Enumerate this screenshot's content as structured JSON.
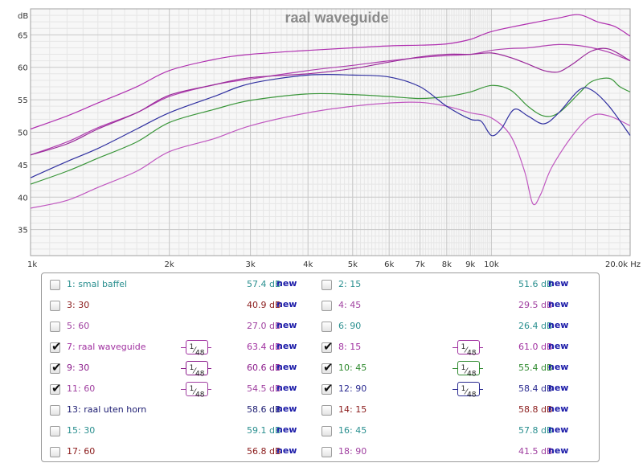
{
  "chart_data": {
    "type": "line",
    "title": "raal waveguide",
    "xscale": "log",
    "xlim": [
      1000,
      20000
    ],
    "ylim": [
      31,
      69
    ],
    "x_ticks": [
      {
        "v": 1000,
        "label": "1k"
      },
      {
        "v": 2000,
        "label": "2k"
      },
      {
        "v": 3000,
        "label": "3k"
      },
      {
        "v": 4000,
        "label": "4k"
      },
      {
        "v": 5000,
        "label": "5k"
      },
      {
        "v": 6000,
        "label": "6k"
      },
      {
        "v": 7000,
        "label": "7k"
      },
      {
        "v": 8000,
        "label": "8k"
      },
      {
        "v": 9000,
        "label": "9k"
      },
      {
        "v": 10000,
        "label": "10k"
      },
      {
        "v": 20000,
        "label": "20.0k Hz"
      }
    ],
    "y_ticks": [
      35,
      40,
      45,
      50,
      55,
      60,
      65
    ],
    "y_unit": "dB",
    "grid": true,
    "series": [
      {
        "name": "7: raal waveguide",
        "color": "#b030b0",
        "points": [
          [
            1000,
            50.5
          ],
          [
            1200,
            52.5
          ],
          [
            1400,
            54.5
          ],
          [
            1700,
            57
          ],
          [
            2000,
            59.5
          ],
          [
            2500,
            61.2
          ],
          [
            3000,
            62
          ],
          [
            4000,
            62.6
          ],
          [
            5000,
            63
          ],
          [
            6000,
            63.3
          ],
          [
            7000,
            63.4
          ],
          [
            8000,
            63.6
          ],
          [
            9000,
            64.3
          ],
          [
            10000,
            65.5
          ],
          [
            12000,
            66.7
          ],
          [
            14000,
            67.6
          ],
          [
            15500,
            68.1
          ],
          [
            17000,
            67
          ],
          [
            18500,
            66.3
          ],
          [
            20000,
            64.8
          ]
        ]
      },
      {
        "name": "8: 15",
        "color": "#b040b0",
        "points": [
          [
            1000,
            46.5
          ],
          [
            1200,
            48.5
          ],
          [
            1400,
            50.7
          ],
          [
            1700,
            53
          ],
          [
            2000,
            55.5
          ],
          [
            2500,
            57.3
          ],
          [
            3000,
            58.2
          ],
          [
            4000,
            59.5
          ],
          [
            5000,
            60.3
          ],
          [
            6000,
            61
          ],
          [
            7000,
            61.5
          ],
          [
            8000,
            61.8
          ],
          [
            9000,
            62
          ],
          [
            10000,
            62.6
          ],
          [
            11000,
            62.9
          ],
          [
            12000,
            63
          ],
          [
            14000,
            63.5
          ],
          [
            16000,
            63.2
          ],
          [
            18000,
            62.3
          ],
          [
            20000,
            61
          ]
        ]
      },
      {
        "name": "9: 30",
        "color": "#9a2a9a",
        "points": [
          [
            1000,
            46.5
          ],
          [
            1200,
            48.2
          ],
          [
            1400,
            50.5
          ],
          [
            1700,
            53
          ],
          [
            2000,
            55.7
          ],
          [
            2500,
            57.3
          ],
          [
            3000,
            58.4
          ],
          [
            4000,
            59
          ],
          [
            5000,
            59.8
          ],
          [
            6000,
            60.8
          ],
          [
            7000,
            61.6
          ],
          [
            8000,
            62
          ],
          [
            9000,
            62
          ],
          [
            10000,
            62.2
          ],
          [
            11000,
            61.5
          ],
          [
            12000,
            60.5
          ],
          [
            13000,
            59.5
          ],
          [
            14000,
            59.3
          ],
          [
            15000,
            60.5
          ],
          [
            16500,
            62.5
          ],
          [
            18000,
            62.8
          ],
          [
            20000,
            61
          ]
        ]
      },
      {
        "name": "10: 45",
        "color": "#3a963a",
        "points": [
          [
            1000,
            42
          ],
          [
            1200,
            44
          ],
          [
            1400,
            46
          ],
          [
            1700,
            48.5
          ],
          [
            2000,
            51.5
          ],
          [
            2500,
            53.5
          ],
          [
            3000,
            54.9
          ],
          [
            4000,
            55.9
          ],
          [
            5000,
            55.8
          ],
          [
            6000,
            55.5
          ],
          [
            7000,
            55.2
          ],
          [
            8000,
            55.5
          ],
          [
            9000,
            56.2
          ],
          [
            10000,
            57.2
          ],
          [
            11000,
            56.5
          ],
          [
            12000,
            54
          ],
          [
            13000,
            52.5
          ],
          [
            14000,
            53
          ],
          [
            15500,
            56
          ],
          [
            16500,
            57.8
          ],
          [
            18000,
            58.3
          ],
          [
            19000,
            57
          ],
          [
            20000,
            56.2
          ]
        ]
      },
      {
        "name": "11: 60",
        "color": "#c058c0",
        "points": [
          [
            1000,
            38.3
          ],
          [
            1200,
            39.5
          ],
          [
            1400,
            41.5
          ],
          [
            1700,
            44
          ],
          [
            2000,
            47
          ],
          [
            2500,
            49
          ],
          [
            3000,
            51
          ],
          [
            4000,
            53
          ],
          [
            5000,
            54
          ],
          [
            6000,
            54.5
          ],
          [
            7000,
            54.6
          ],
          [
            8000,
            54
          ],
          [
            9000,
            53
          ],
          [
            10000,
            52.2
          ],
          [
            11000,
            49.5
          ],
          [
            11800,
            44
          ],
          [
            12300,
            39
          ],
          [
            12800,
            40.5
          ],
          [
            13500,
            44.5
          ],
          [
            15000,
            49.5
          ],
          [
            16500,
            52.5
          ],
          [
            18000,
            52.5
          ],
          [
            20000,
            51
          ]
        ]
      },
      {
        "name": "12: 90",
        "color": "#3030a0",
        "points": [
          [
            1000,
            43
          ],
          [
            1200,
            45.5
          ],
          [
            1400,
            47.5
          ],
          [
            1700,
            50.5
          ],
          [
            2000,
            53
          ],
          [
            2500,
            55.5
          ],
          [
            3000,
            57.5
          ],
          [
            4000,
            58.8
          ],
          [
            5000,
            58.8
          ],
          [
            6000,
            58.5
          ],
          [
            7000,
            57
          ],
          [
            8000,
            54
          ],
          [
            9000,
            52
          ],
          [
            9500,
            51.7
          ],
          [
            10000,
            49.5
          ],
          [
            10500,
            50.5
          ],
          [
            11200,
            53.5
          ],
          [
            12000,
            52.5
          ],
          [
            13000,
            51.3
          ],
          [
            14000,
            53
          ],
          [
            15500,
            56.5
          ],
          [
            16500,
            56.5
          ],
          [
            18000,
            54
          ],
          [
            20000,
            49.5
          ]
        ]
      }
    ]
  },
  "legend": {
    "smoothing_label": "1/48",
    "smoothing_num": "1",
    "smoothing_den": "48",
    "new_label": "new",
    "items": [
      {
        "label": "1: smal baffel",
        "checked": false,
        "value": "57.4 dB",
        "color": "#2a8f8f",
        "smoothing": false
      },
      {
        "label": "2: 15",
        "checked": false,
        "value": "51.6 dB",
        "color": "#2a8f8f",
        "smoothing": false
      },
      {
        "label": "3: 30",
        "checked": false,
        "value": "40.9 dB",
        "color": "#8a1a1a",
        "smoothing": false
      },
      {
        "label": "4: 45",
        "checked": false,
        "value": "29.5 dB",
        "color": "#a040a0",
        "smoothing": false
      },
      {
        "label": "5: 60",
        "checked": false,
        "value": "27.0 dB",
        "color": "#a040a0",
        "smoothing": false
      },
      {
        "label": "6: 90",
        "checked": false,
        "value": "26.4 dB",
        "color": "#2a8f8f",
        "smoothing": false
      },
      {
        "label": "7: raal waveguide",
        "checked": true,
        "value": "63.4 dB",
        "color": "#a030a0",
        "smoothing": true
      },
      {
        "label": "8: 15",
        "checked": true,
        "value": "61.0 dB",
        "color": "#a030a0",
        "smoothing": true
      },
      {
        "label": "9: 30",
        "checked": true,
        "value": "60.6 dB",
        "color": "#8a1a8a",
        "smoothing": true
      },
      {
        "label": "10: 45",
        "checked": true,
        "value": "55.4 dB",
        "color": "#2f8a2f",
        "smoothing": true
      },
      {
        "label": "11: 60",
        "checked": true,
        "value": "54.5 dB",
        "color": "#a040a0",
        "smoothing": true
      },
      {
        "label": "12: 90",
        "checked": true,
        "value": "58.4 dB",
        "color": "#2a2a90",
        "smoothing": true
      },
      {
        "label": "13: raal uten horn",
        "checked": false,
        "value": "58.6 dB",
        "color": "#1a1a70",
        "smoothing": false
      },
      {
        "label": "14: 15",
        "checked": false,
        "value": "58.8 dB",
        "color": "#8a1a1a",
        "smoothing": false
      },
      {
        "label": "15: 30",
        "checked": false,
        "value": "59.1 dB",
        "color": "#2a8f8f",
        "smoothing": false
      },
      {
        "label": "16: 45",
        "checked": false,
        "value": "57.8 dB",
        "color": "#2a8f8f",
        "smoothing": false
      },
      {
        "label": "17: 60",
        "checked": false,
        "value": "56.8 dB",
        "color": "#8a1a1a",
        "smoothing": false
      },
      {
        "label": "18: 90",
        "checked": false,
        "value": "41.5 dB",
        "color": "#a040a0",
        "smoothing": false
      }
    ]
  }
}
